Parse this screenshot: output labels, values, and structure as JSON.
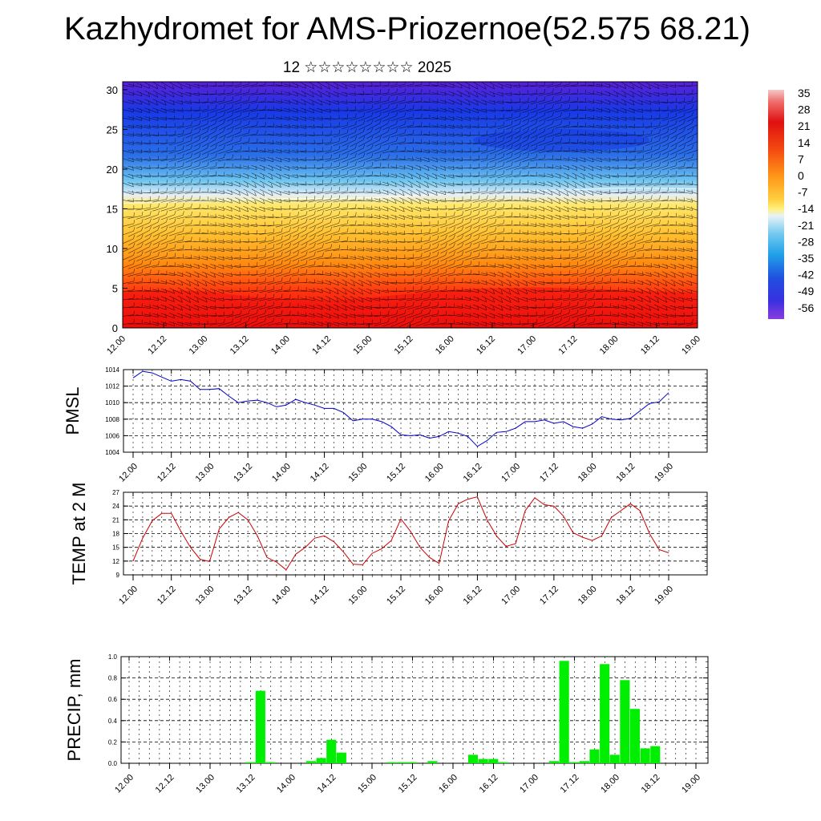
{
  "title": "Kazhydromet for AMS-Priozernoe(52.575 68.21)",
  "subtitle": "12 ☆☆☆☆☆☆☆☆ 2025",
  "time_ticks": [
    "12.00",
    "12.12",
    "13.00",
    "13.12",
    "14.00",
    "14.12",
    "15.00",
    "15.12",
    "16.00",
    "16.12",
    "17.00",
    "17.12",
    "18.00",
    "18.12",
    "19.00"
  ],
  "chart_data": [
    {
      "type": "heatmap",
      "title": "",
      "xlabel": "",
      "ylabel": "",
      "x_ticks": [
        "12.00",
        "12.12",
        "13.00",
        "13.12",
        "14.00",
        "14.12",
        "15.00",
        "15.12",
        "16.00",
        "16.12",
        "17.00",
        "17.12",
        "18.00",
        "18.12",
        "19.00"
      ],
      "y_ticks": [
        0,
        5,
        10,
        15,
        20,
        25,
        30
      ],
      "ylim": [
        0,
        31
      ],
      "colorbar_labels": [
        35,
        28,
        21,
        14,
        7,
        0,
        -7,
        -14,
        -21,
        -28,
        -35,
        -42,
        -49,
        -56
      ],
      "colorbar_range": [
        -60,
        39
      ],
      "freezing_level": [
        15.7,
        15.8,
        16.0,
        16.2,
        16.3,
        16.3,
        16.4,
        16.6,
        16.9,
        17.1,
        17.3,
        17.4,
        17.6,
        17.6,
        17.5
      ],
      "warm_core": [
        4.5,
        4.8,
        4.6,
        4.0,
        3.6,
        3.4,
        3.8,
        4.3,
        4.8,
        5.0,
        5.1,
        5.0,
        4.8,
        4.6,
        4.4
      ],
      "colors": {
        "hot": "#f01010",
        "warm": "#ff8c00",
        "mild": "#ffdd30",
        "cold": "#40a8e8",
        "deep_cold": "#1530e0",
        "extreme": "#6a28d8"
      }
    },
    {
      "type": "line",
      "title": "",
      "ylabel": "PMSL",
      "xlabel": "",
      "ylim": [
        1004,
        1014
      ],
      "y_ticks": [
        1004,
        1006,
        1008,
        1010,
        1012,
        1014
      ],
      "color": "#0000cc",
      "values": [
        1013.0,
        1013.8,
        1013.6,
        1013.1,
        1012.6,
        1012.8,
        1012.6,
        1011.6,
        1011.6,
        1011.7,
        1010.8,
        1010.0,
        1010.2,
        1010.3,
        1010.0,
        1009.5,
        1009.7,
        1010.4,
        1010.0,
        1009.7,
        1009.3,
        1009.3,
        1008.8,
        1007.8,
        1008.0,
        1008.0,
        1007.7,
        1007.1,
        1006.1,
        1006.0,
        1006.1,
        1005.7,
        1005.9,
        1006.5,
        1006.3,
        1005.9,
        1004.7,
        1005.4,
        1006.4,
        1006.5,
        1006.9,
        1007.7,
        1007.7,
        1007.9,
        1007.5,
        1007.7,
        1007.1,
        1006.9,
        1007.4,
        1008.3,
        1008.0,
        1007.9,
        1008.1,
        1009.0,
        1009.9,
        1010.1,
        1011.2
      ]
    },
    {
      "type": "line",
      "title": "",
      "ylabel": "TEMP at 2 M",
      "xlabel": "",
      "ylim": [
        9,
        27
      ],
      "y_ticks": [
        9,
        12,
        15,
        18,
        21,
        24,
        27
      ],
      "color": "#cc0000",
      "values": [
        12.0,
        17.0,
        20.8,
        22.4,
        22.4,
        18.5,
        15.0,
        12.4,
        11.9,
        19.0,
        21.5,
        22.6,
        21.0,
        17.5,
        12.8,
        11.8,
        10.1,
        13.5,
        15.0,
        17.0,
        17.5,
        16.2,
        14.0,
        11.3,
        11.2,
        13.7,
        14.7,
        16.5,
        21.2,
        18.5,
        15.0,
        12.8,
        11.5,
        20.8,
        24.5,
        25.5,
        26.0,
        21.0,
        17.5,
        15.2,
        15.8,
        23.0,
        25.8,
        24.3,
        24.0,
        21.8,
        18.2,
        17.2,
        16.5,
        17.5,
        21.5,
        23.0,
        24.5,
        23.0,
        18.0,
        14.5,
        13.8
      ]
    },
    {
      "type": "bar",
      "title": "",
      "ylabel": "PRECIP, mm",
      "xlabel": "",
      "ylim": [
        0,
        1.0
      ],
      "y_ticks": [
        "0.0",
        "0.2",
        "0.4",
        "0.6",
        "0.8",
        "1.0"
      ],
      "color": "#00ee00",
      "values": [
        0,
        0,
        0,
        0,
        0,
        0,
        0,
        0,
        0,
        0,
        0,
        0,
        0.01,
        0.68,
        0.01,
        0,
        0,
        0,
        0.02,
        0.05,
        0.22,
        0.1,
        0,
        0,
        0,
        0,
        0.01,
        0.01,
        0.01,
        0,
        0.02,
        0,
        0,
        0,
        0.08,
        0.04,
        0.04,
        0.01,
        0,
        0,
        0,
        0,
        0.02,
        0.96,
        0.01,
        0.02,
        0.13,
        0.93,
        0.08,
        0.78,
        0.51,
        0.14,
        0.16,
        0,
        0,
        0,
        0
      ]
    }
  ]
}
